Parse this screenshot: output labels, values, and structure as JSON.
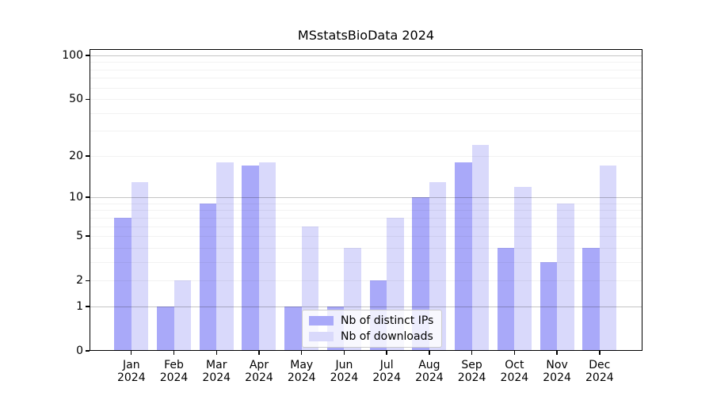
{
  "chart_data": {
    "type": "bar",
    "title": "MSstatsBioData 2024",
    "categories": [
      {
        "month": "Jan",
        "year": "2024"
      },
      {
        "month": "Feb",
        "year": "2024"
      },
      {
        "month": "Mar",
        "year": "2024"
      },
      {
        "month": "Apr",
        "year": "2024"
      },
      {
        "month": "May",
        "year": "2024"
      },
      {
        "month": "Jun",
        "year": "2024"
      },
      {
        "month": "Jul",
        "year": "2024"
      },
      {
        "month": "Aug",
        "year": "2024"
      },
      {
        "month": "Sep",
        "year": "2024"
      },
      {
        "month": "Oct",
        "year": "2024"
      },
      {
        "month": "Nov",
        "year": "2024"
      },
      {
        "month": "Dec",
        "year": "2024"
      }
    ],
    "series": [
      {
        "name": "Nb of distinct IPs",
        "color": "#a9a9f9",
        "values": [
          7,
          1,
          9,
          17,
          1,
          1,
          2,
          10,
          18,
          4,
          3,
          4
        ]
      },
      {
        "name": "Nb of downloads",
        "color": "#d9d9fb",
        "values": [
          13,
          2,
          18,
          18,
          6,
          4,
          7,
          13,
          24,
          12,
          9,
          17
        ]
      }
    ],
    "xlabel": "",
    "ylabel": "",
    "yscale": "log1p",
    "ylim": [
      0,
      112
    ],
    "yticks": [
      0,
      1,
      2,
      5,
      10,
      20,
      50,
      100
    ],
    "major_gridlines": [
      1,
      10,
      100
    ],
    "minor_gridlines": [
      2,
      3,
      4,
      5,
      6,
      7,
      8,
      9,
      20,
      30,
      40,
      50,
      60,
      70,
      80,
      90
    ],
    "grid": true,
    "legend_position": "lower center"
  }
}
